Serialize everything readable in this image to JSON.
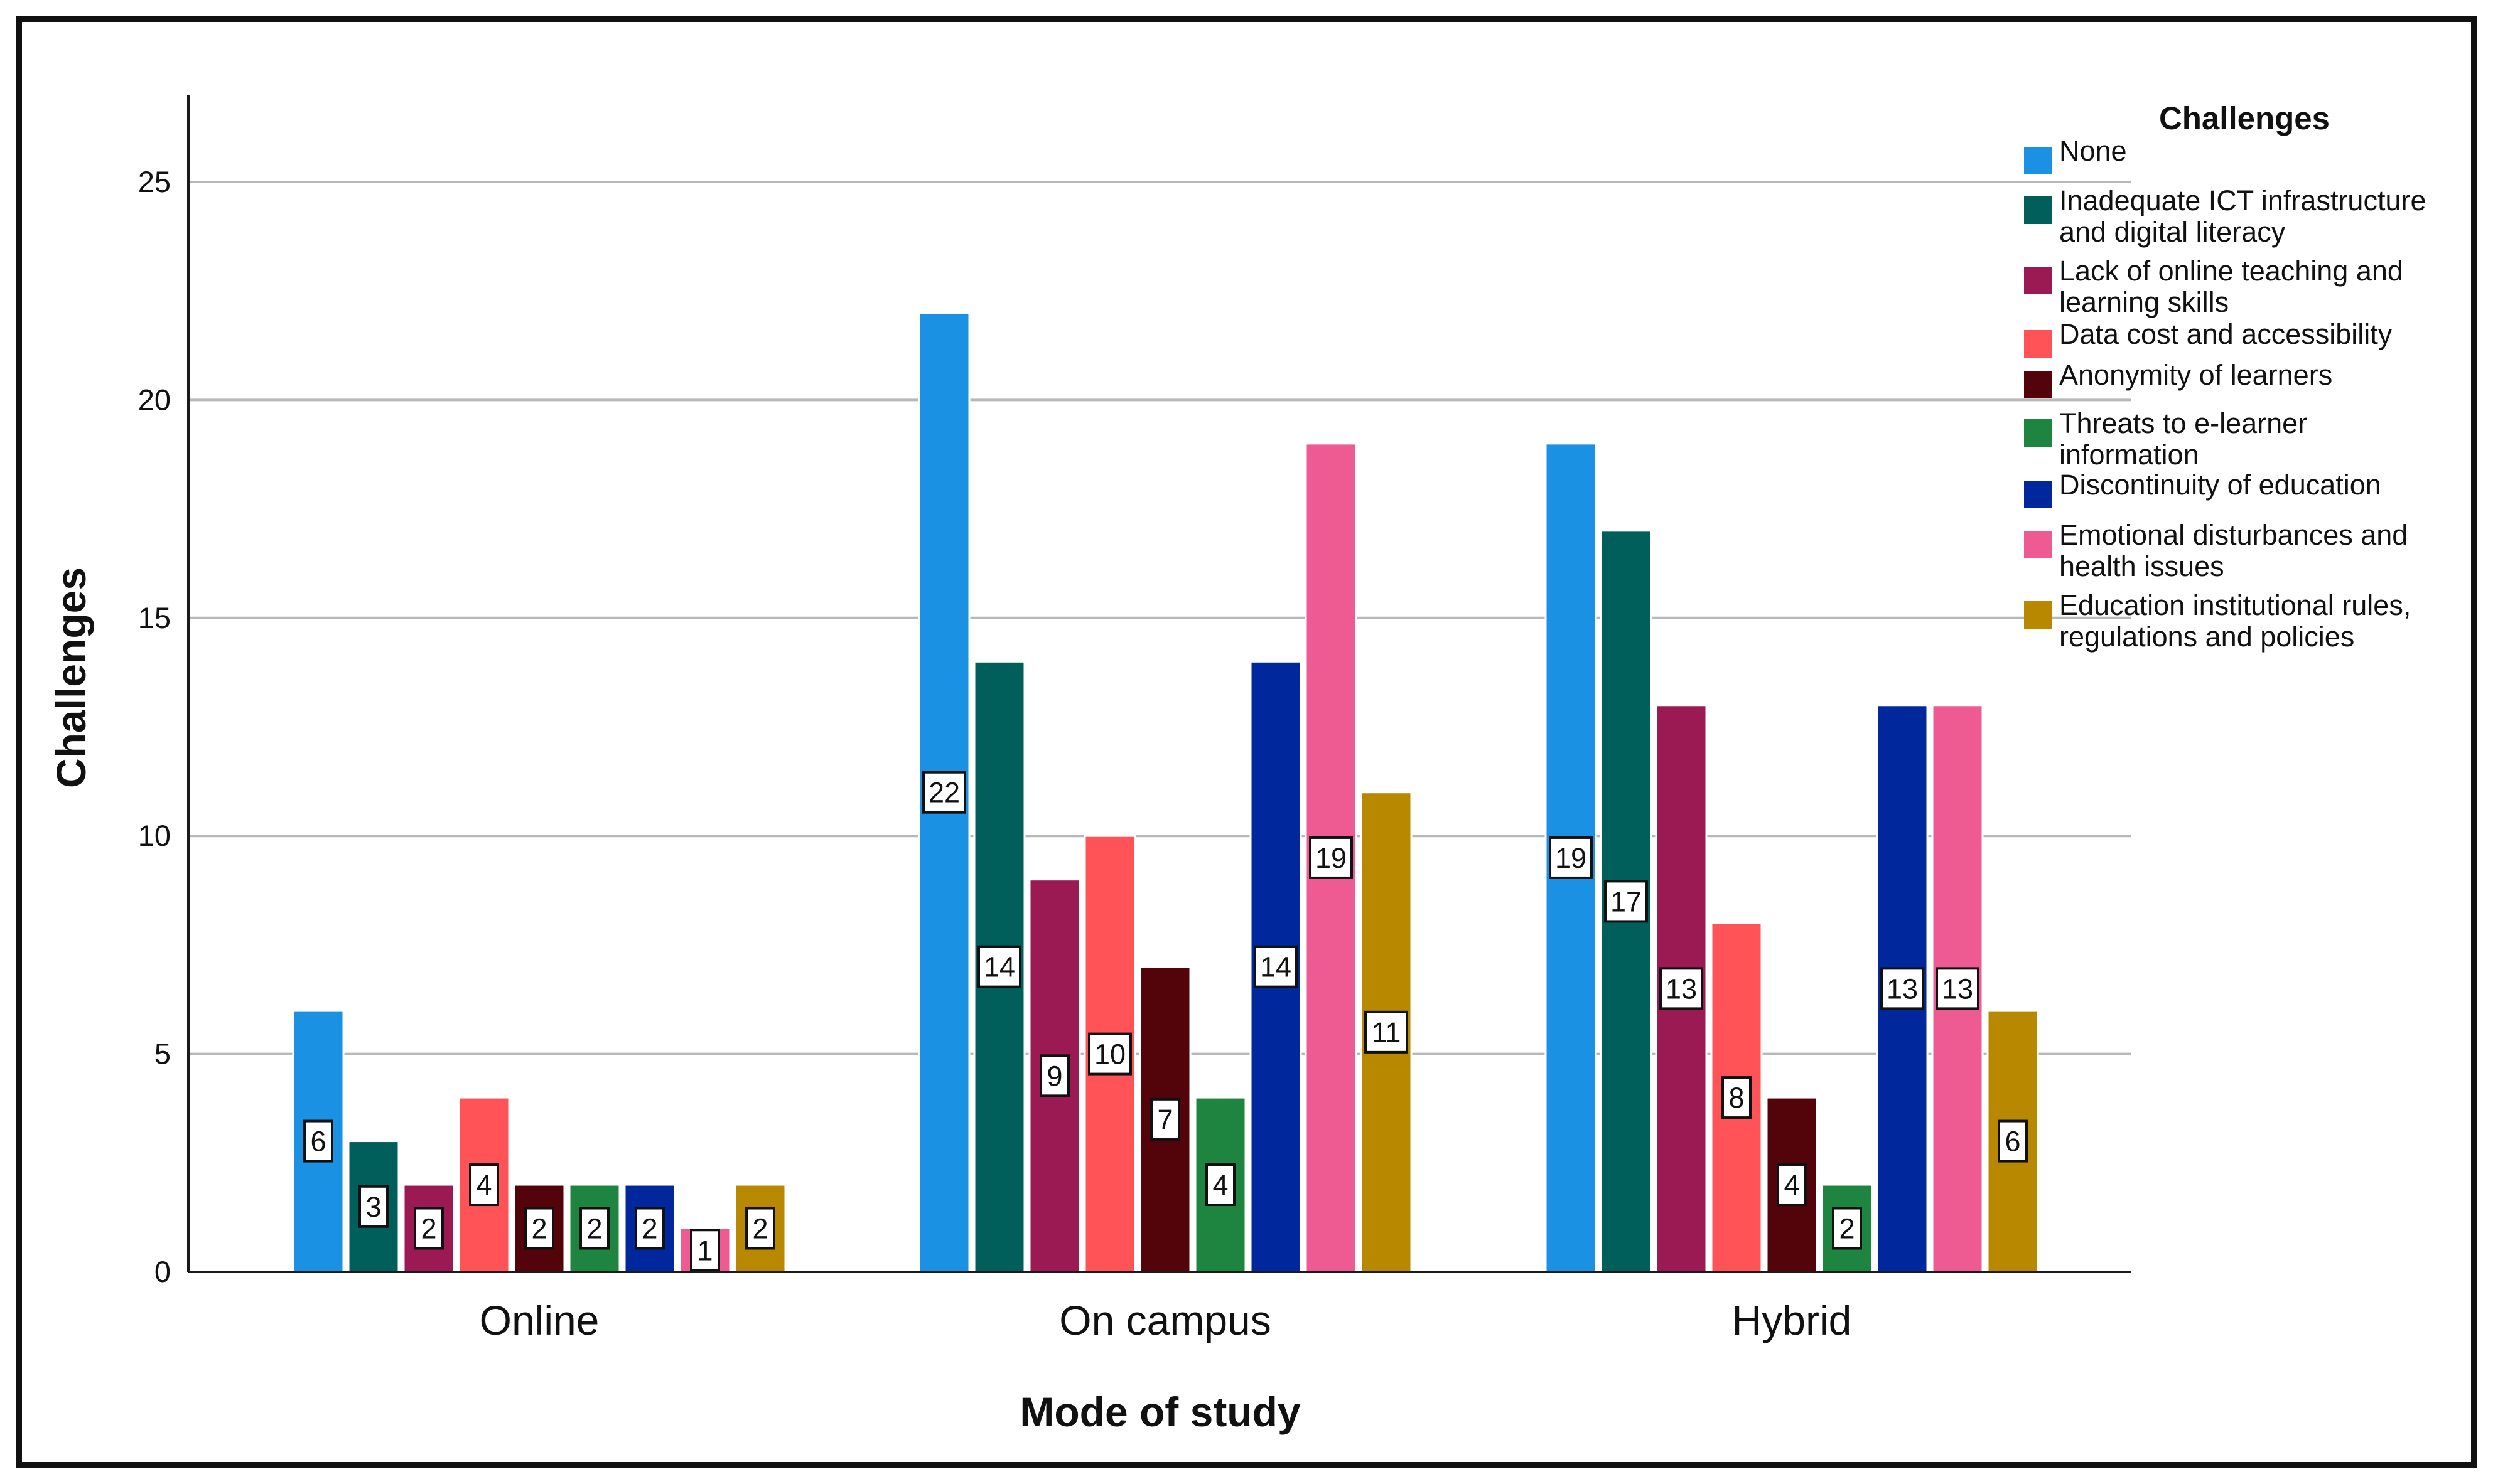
{
  "chart_data": {
    "type": "bar",
    "title": "",
    "xlabel": "Mode of study",
    "ylabel": "Challenges",
    "ylim": [
      0,
      27
    ],
    "yticks": [
      0,
      5,
      10,
      15,
      20,
      25
    ],
    "grid": true,
    "legend_position": "top-right",
    "legend_title": "Challenges",
    "categories": [
      "Online",
      "On campus",
      "Hybrid"
    ],
    "series": [
      {
        "name": "None",
        "lines": [
          "None"
        ],
        "color": "#1a91e3",
        "values": [
          6,
          22,
          19
        ]
      },
      {
        "name": "Inadequate ICT infrastructure and digital literacy",
        "lines": [
          "Inadequate ICT infrastructure",
          "and digital literacy"
        ],
        "color": "#005f5a",
        "values": [
          3,
          14,
          17
        ]
      },
      {
        "name": "Lack of online teaching and learning skills",
        "lines": [
          "Lack of online teaching and",
          "learning skills"
        ],
        "color": "#9c1a54",
        "values": [
          2,
          9,
          13
        ]
      },
      {
        "name": "Data cost and accessibility",
        "lines": [
          "Data cost and accessibility"
        ],
        "color": "#ff5358",
        "values": [
          4,
          10,
          8
        ]
      },
      {
        "name": "Anonymity of learners",
        "lines": [
          "Anonymity of learners"
        ],
        "color": "#52040a",
        "values": [
          2,
          7,
          4
        ]
      },
      {
        "name": "Threats to e-learner information",
        "lines": [
          "Threats to e-learner",
          "information"
        ],
        "color": "#1e8540",
        "values": [
          2,
          4,
          2
        ]
      },
      {
        "name": "Discontinuity of education",
        "lines": [
          "Discontinuity of education"
        ],
        "color": "#00289c",
        "values": [
          2,
          14,
          13
        ]
      },
      {
        "name": "Emotional disturbances and health issues",
        "lines": [
          "Emotional disturbances and",
          "health issues"
        ],
        "color": "#ee5b93",
        "values": [
          1,
          19,
          13
        ]
      },
      {
        "name": "Education institutional rules, regulations and policies",
        "lines": [
          "Education institutional rules,",
          "regulations and policies"
        ],
        "color": "#b88800",
        "values": [
          2,
          11,
          6
        ]
      }
    ]
  }
}
